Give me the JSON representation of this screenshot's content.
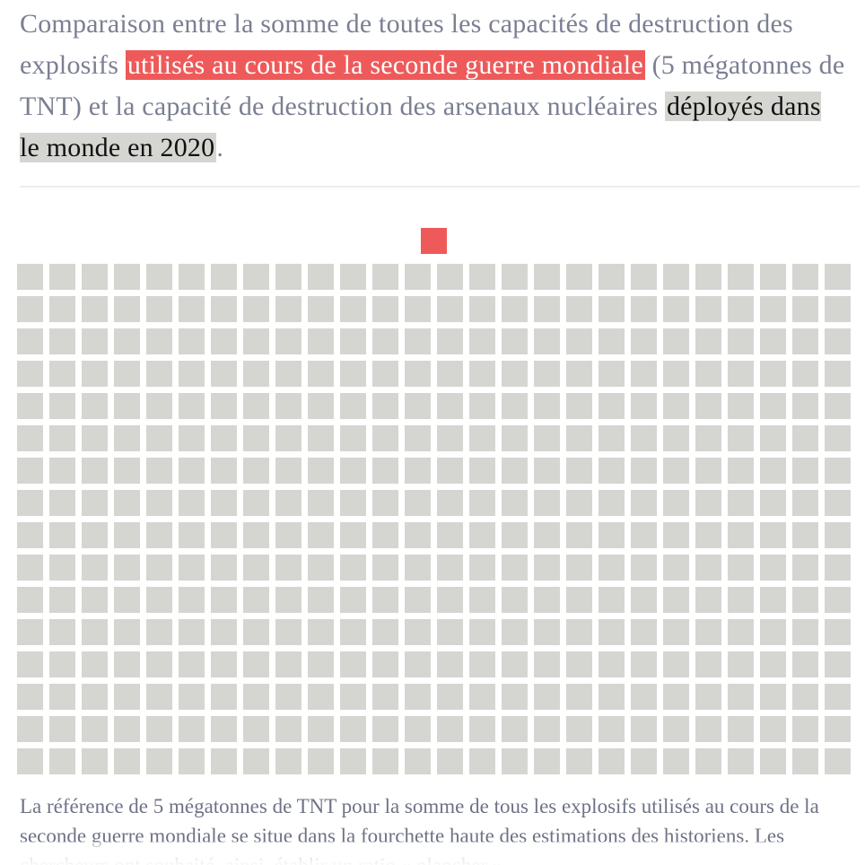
{
  "title": {
    "part1": "Comparaison entre la somme de toutes les capacités de destruction des explosifs ",
    "highlight1": "utilisés au cours de la seconde guerre mondiale",
    "part2": " (5 mégatonnes de TNT) et la capacité de destruction des arsenaux nucléaires ",
    "highlight2": "déployés dans le monde en 2020",
    "part3": "."
  },
  "note": "La référence de 5 mégatonnes de TNT pour la somme de tous les explosifs utilisés au cours de la seconde guerre mondiale se situe dans la fourchette haute des estimations des historiens. Les chercheurs ont souhaité, ainsi, établir un ratio « plancher ».",
  "colors": {
    "ww2": "#ee5a5a",
    "arsenal": "#d5d5d2",
    "title_text": "#7b7f92"
  },
  "chart_data": {
    "type": "waffle",
    "unit_megatons_tnt": 5,
    "series": [
      {
        "label": "utilisés au cours de la seconde guerre mondiale",
        "squares": 1,
        "color": "#ee5a5a"
      },
      {
        "label": "déployés dans le monde en 2020",
        "squares": 416,
        "color": "#d5d5d2"
      }
    ],
    "grid_columns": 26,
    "grid_rows": 16
  }
}
